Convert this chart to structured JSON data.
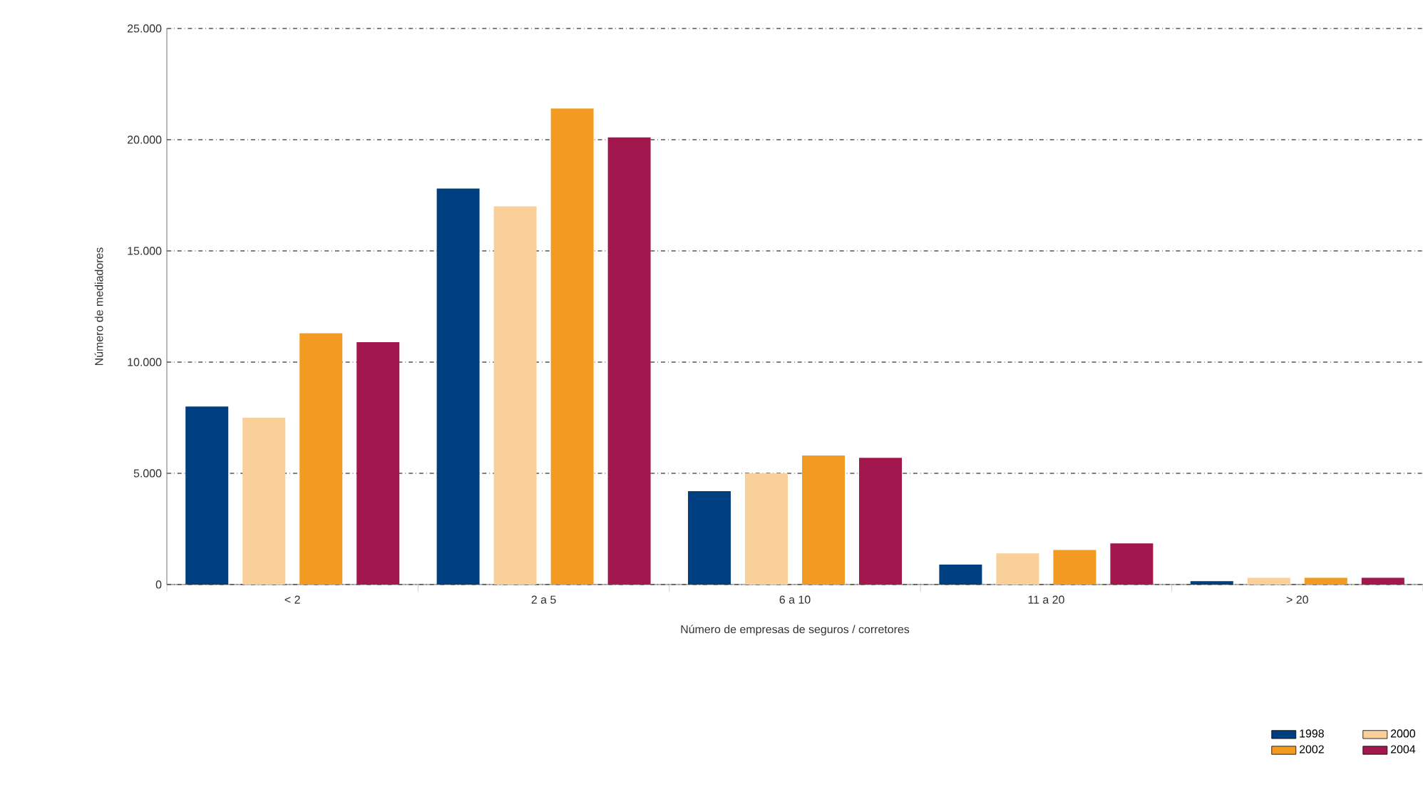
{
  "chart_data": {
    "type": "bar",
    "xlabel": "Número de empresas de seguros / corretores",
    "ylabel": "Número de mediadores",
    "categories": [
      "< 2",
      "2 a 5",
      "6 a 10",
      "11 a 20",
      "> 20"
    ],
    "series": [
      {
        "name": "1998",
        "color": "#003f7f",
        "values": [
          8000,
          17800,
          4200,
          900,
          150
        ]
      },
      {
        "name": "2000",
        "color": "#f9d09a",
        "values": [
          7500,
          17000,
          5000,
          1400,
          300
        ]
      },
      {
        "name": "2002",
        "color": "#f39a22",
        "values": [
          11300,
          21400,
          5800,
          1550,
          300
        ]
      },
      {
        "name": "2004",
        "color": "#a3174f",
        "values": [
          10900,
          20100,
          5700,
          1850,
          300
        ]
      }
    ],
    "ylim": [
      0,
      25000
    ],
    "yticks": [
      {
        "value": 0,
        "label": "0"
      },
      {
        "value": 5000,
        "label": "5.000"
      },
      {
        "value": 10000,
        "label": "10.000"
      },
      {
        "value": 15000,
        "label": "15.000"
      },
      {
        "value": 20000,
        "label": "20.000"
      },
      {
        "value": 25000,
        "label": "25.000"
      }
    ],
    "grid": "y",
    "legend": "bottom right"
  }
}
